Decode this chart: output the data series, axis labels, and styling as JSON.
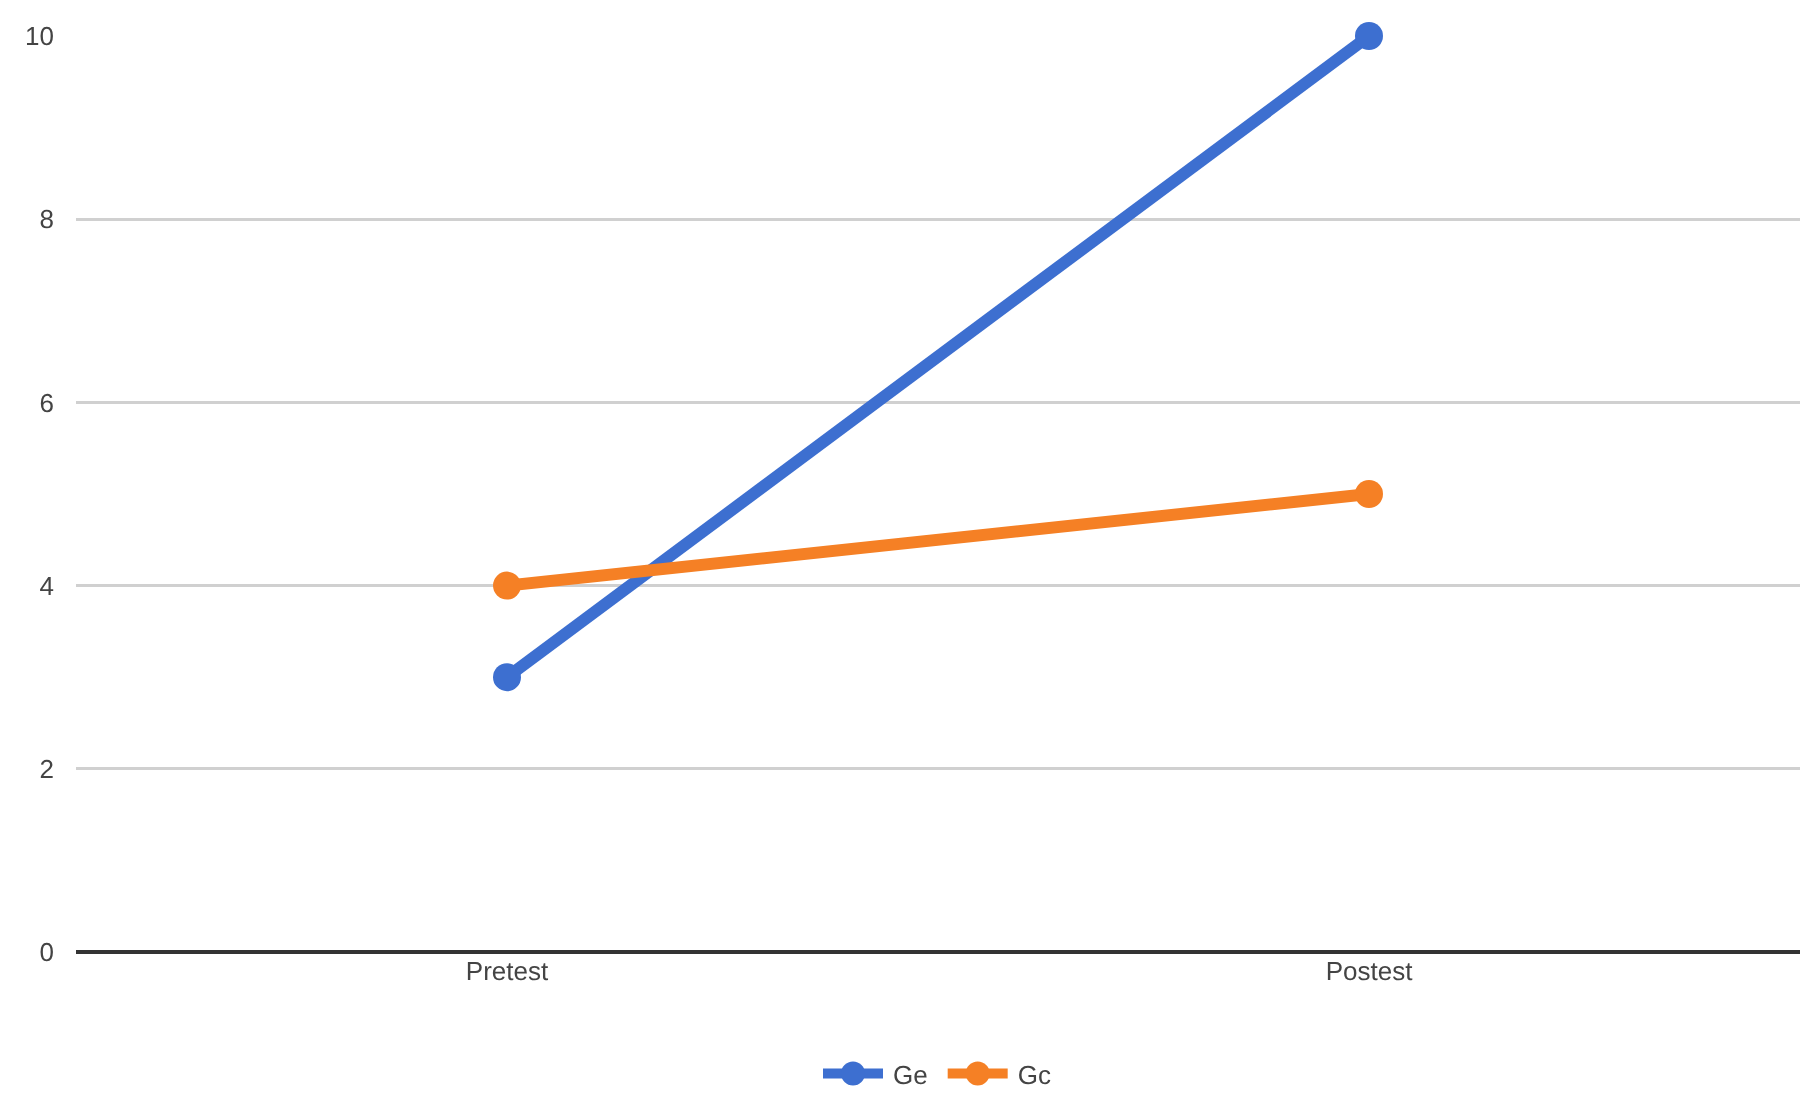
{
  "chart_data": {
    "type": "line",
    "categories": [
      "Pretest",
      "Postest"
    ],
    "series": [
      {
        "name": "Ge",
        "color": "#3d6fd0",
        "values": [
          3,
          10
        ]
      },
      {
        "name": "Gc",
        "color": "#f58025",
        "values": [
          4,
          5
        ]
      }
    ],
    "ylim": [
      0,
      10
    ],
    "yticks": [
      0,
      2,
      4,
      6,
      8,
      10
    ],
    "grid": "y",
    "legend": "bottom",
    "marker": "circle",
    "line_style": "solid"
  }
}
